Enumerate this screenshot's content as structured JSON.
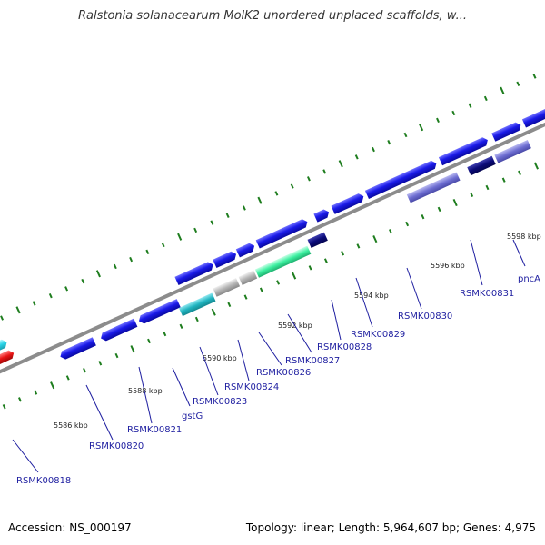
{
  "title": "Ralstonia solanacearum MolK2 unordered unplaced scaffolds, w...",
  "footer": {
    "accession": "Accession: NS_000197",
    "summary": "Topology: linear; Length: 5,964,607 bp; Genes: 4,975"
  },
  "ruler_labels": [
    "5586 kbp",
    "5588 kbp",
    "5590 kbp",
    "5592 kbp",
    "5594 kbp",
    "5596 kbp",
    "5598 kbp"
  ],
  "gene_labels": [
    "RSMK00818",
    "RSMK00820",
    "RSMK00821",
    "gstG",
    "RSMK00823",
    "RSMK00824",
    "RSMK00826",
    "RSMK00827",
    "RSMK00828",
    "RSMK00829",
    "RSMK00830",
    "RSMK00831",
    "pncA"
  ],
  "colors": {
    "gene_blue": "#1414e6",
    "gene_dark_navy": "#0a0a78",
    "gene_light_purple": "#6e6ed2",
    "gene_cyan": "#28d2e6",
    "gene_teal": "#20b4c0",
    "gene_red": "#e81414",
    "gene_gray": "#b4b4b4",
    "gene_mint": "#3cf0a0",
    "backbone": "#8c8c8c",
    "tick": "#1e7d1e",
    "label": "#1e1ea0"
  }
}
